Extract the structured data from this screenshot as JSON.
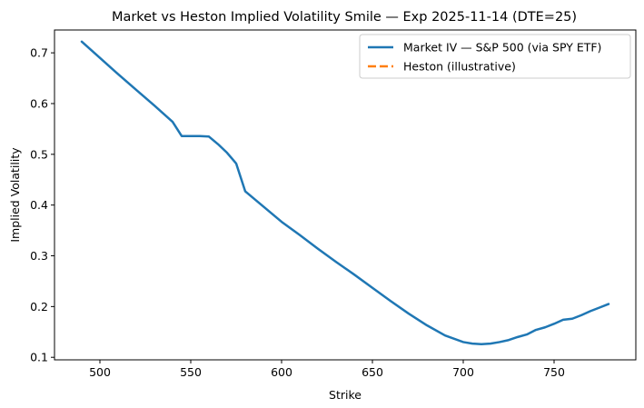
{
  "chart_data": {
    "type": "line",
    "title": "Market vs Heston Implied Volatility Smile — Exp 2025-11-14 (DTE=25)",
    "xlabel": "Strike",
    "ylabel": "Implied Volatility",
    "xlim": [
      475,
      795
    ],
    "ylim": [
      0.095,
      0.745
    ],
    "xticks": [
      500,
      550,
      600,
      650,
      700,
      750
    ],
    "yticks": [
      0.1,
      0.2,
      0.3,
      0.4,
      0.5,
      0.6,
      0.7
    ],
    "ytick_labels": [
      "0.1",
      "0.2",
      "0.3",
      "0.4",
      "0.5",
      "0.6",
      "0.7"
    ],
    "grid": false,
    "legend_position": "top-right",
    "series": [
      {
        "name": "Market IV — S&P 500 (via SPY ETF)",
        "color": "#1f77b4",
        "style": "solid",
        "x": [
          490,
          500,
          510,
          520,
          530,
          540,
          545,
          550,
          555,
          560,
          565,
          570,
          575,
          580,
          585,
          590,
          595,
          600,
          610,
          620,
          630,
          640,
          650,
          660,
          670,
          680,
          690,
          700,
          705,
          710,
          715,
          720,
          725,
          730,
          735,
          740,
          745,
          750,
          755,
          760,
          765,
          770,
          775,
          780
        ],
        "y": [
          0.722,
          0.69,
          0.658,
          0.627,
          0.596,
          0.564,
          0.536,
          0.536,
          0.536,
          0.535,
          0.52,
          0.503,
          0.482,
          0.427,
          0.412,
          0.397,
          0.382,
          0.367,
          0.341,
          0.314,
          0.288,
          0.263,
          0.237,
          0.211,
          0.186,
          0.163,
          0.143,
          0.13,
          0.127,
          0.126,
          0.127,
          0.13,
          0.134,
          0.14,
          0.145,
          0.154,
          0.159,
          0.166,
          0.174,
          0.176,
          0.183,
          0.191,
          0.198,
          0.205
        ]
      },
      {
        "name": "Heston (illustrative)",
        "color": "#ff7f0e",
        "style": "dashed",
        "x": [],
        "y": []
      }
    ]
  }
}
